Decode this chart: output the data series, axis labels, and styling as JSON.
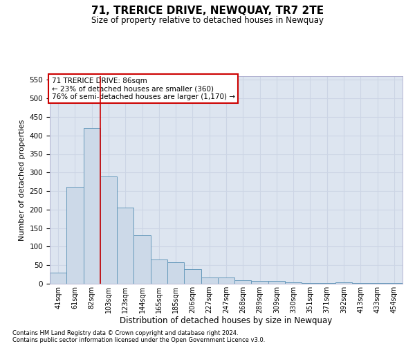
{
  "title": "71, TRERICE DRIVE, NEWQUAY, TR7 2TE",
  "subtitle": "Size of property relative to detached houses in Newquay",
  "xlabel": "Distribution of detached houses by size in Newquay",
  "ylabel": "Number of detached properties",
  "footer_line1": "Contains HM Land Registry data © Crown copyright and database right 2024.",
  "footer_line2": "Contains public sector information licensed under the Open Government Licence v3.0.",
  "annotation_title": "71 TRERICE DRIVE: 86sqm",
  "annotation_line2": "← 23% of detached houses are smaller (360)",
  "annotation_line3": "76% of semi-detached houses are larger (1,170) →",
  "bar_color": "#ccd9e8",
  "bar_edge_color": "#6699bb",
  "vline_color": "#cc0000",
  "vline_x_index": 2,
  "categories": [
    "41sqm",
    "61sqm",
    "82sqm",
    "103sqm",
    "123sqm",
    "144sqm",
    "165sqm",
    "185sqm",
    "206sqm",
    "227sqm",
    "247sqm",
    "268sqm",
    "289sqm",
    "309sqm",
    "330sqm",
    "351sqm",
    "371sqm",
    "392sqm",
    "413sqm",
    "433sqm",
    "454sqm"
  ],
  "values": [
    30,
    262,
    420,
    290,
    205,
    130,
    65,
    57,
    40,
    17,
    17,
    10,
    8,
    8,
    4,
    1,
    1,
    4,
    2,
    1,
    2
  ],
  "ylim": [
    0,
    560
  ],
  "yticks": [
    0,
    50,
    100,
    150,
    200,
    250,
    300,
    350,
    400,
    450,
    500,
    550
  ],
  "grid_color": "#ccd5e5",
  "background_color": "#dde5f0"
}
